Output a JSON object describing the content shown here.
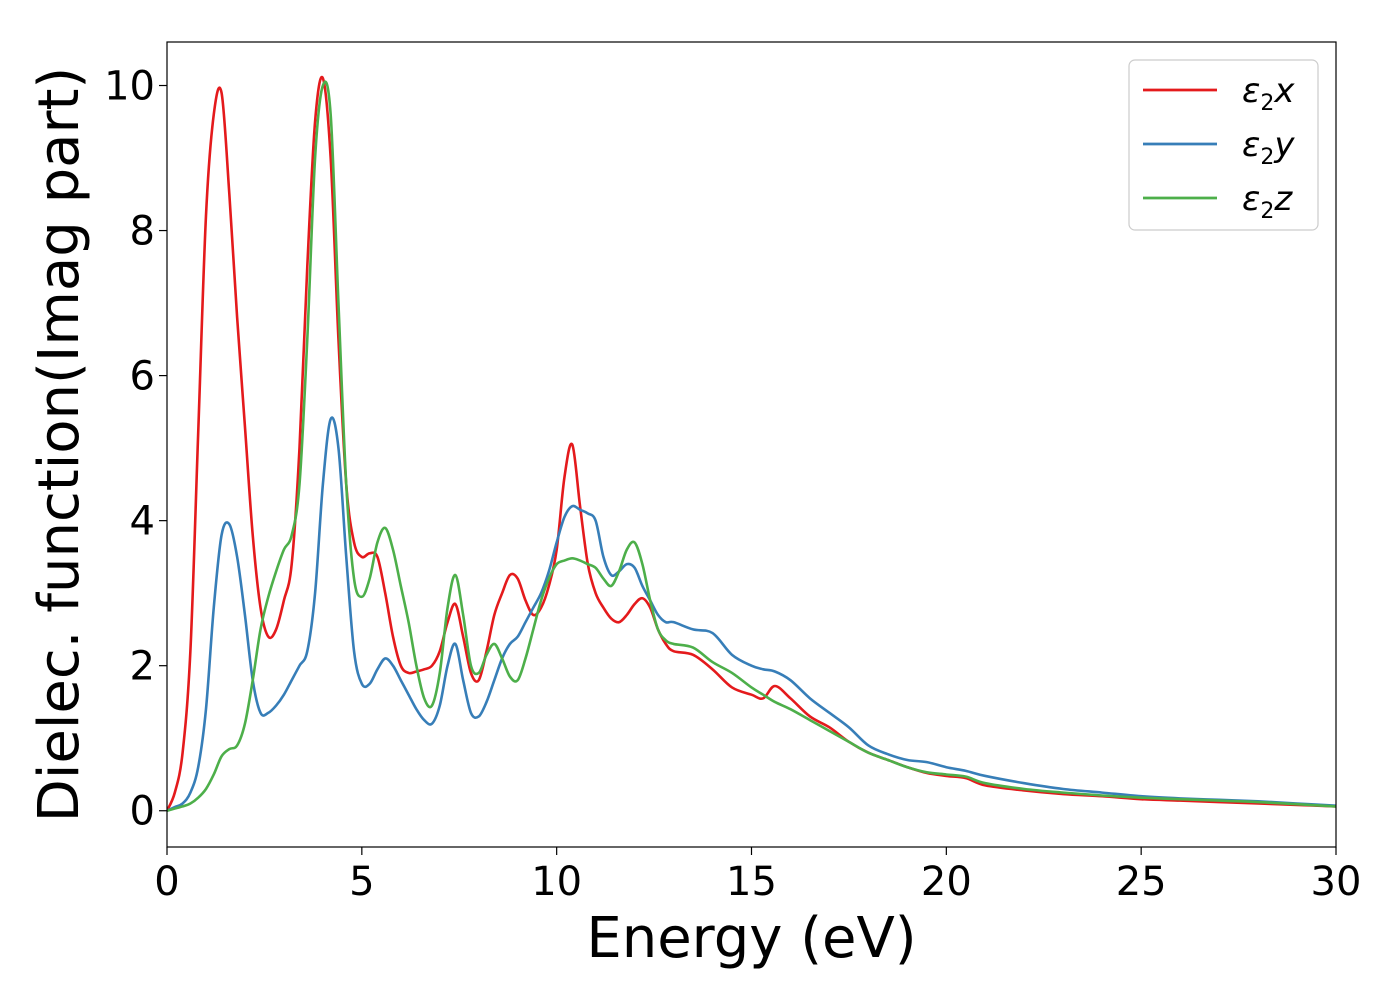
{
  "chart_data": {
    "type": "line",
    "xlabel": "Energy (eV)",
    "ylabel": "Dielec. function(Imag part)",
    "xlim": [
      0,
      30
    ],
    "ylim": [
      -0.5,
      10.6
    ],
    "xticks": [
      0,
      5,
      10,
      15,
      20,
      25,
      30
    ],
    "xtick_labels": [
      "0",
      "5",
      "10",
      "15",
      "20",
      "25",
      "30"
    ],
    "yticks": [
      0,
      2,
      4,
      6,
      8,
      10
    ],
    "ytick_labels": [
      "0",
      "2",
      "4",
      "6",
      "8",
      "10"
    ],
    "grid": false,
    "legend_position": "top-right",
    "series": [
      {
        "name": "ε2x",
        "legend": {
          "base": "ε",
          "sub": "2",
          "var": "x"
        },
        "color": "#e41a1c",
        "x": [
          0,
          0.2,
          0.4,
          0.6,
          0.8,
          1.0,
          1.2,
          1.4,
          1.6,
          1.8,
          2.0,
          2.2,
          2.4,
          2.6,
          2.8,
          3.0,
          3.2,
          3.4,
          3.6,
          3.8,
          4.0,
          4.2,
          4.4,
          4.6,
          4.8,
          5.0,
          5.2,
          5.4,
          5.6,
          5.8,
          6.0,
          6.2,
          6.4,
          6.6,
          6.8,
          7.0,
          7.2,
          7.4,
          7.6,
          7.8,
          8.0,
          8.2,
          8.4,
          8.6,
          8.8,
          9.0,
          9.2,
          9.4,
          9.6,
          9.8,
          10.0,
          10.2,
          10.4,
          10.6,
          10.8,
          11.0,
          11.2,
          11.4,
          11.6,
          11.8,
          12.0,
          12.2,
          12.4,
          12.6,
          12.8,
          13.0,
          13.5,
          14.0,
          14.5,
          15.0,
          15.3,
          15.6,
          16.0,
          16.5,
          17.0,
          17.5,
          18.0,
          18.5,
          19.0,
          19.5,
          20.0,
          20.5,
          21.0,
          22.0,
          23.0,
          24.0,
          25.0,
          26.0,
          27.0,
          28.0,
          29.0,
          30.0
        ],
        "values": [
          0.0,
          0.25,
          0.8,
          2.2,
          5.2,
          8.2,
          9.6,
          9.9,
          8.5,
          6.8,
          5.3,
          3.8,
          2.8,
          2.4,
          2.5,
          2.9,
          3.4,
          5.0,
          7.5,
          9.5,
          10.1,
          9.0,
          6.5,
          4.5,
          3.7,
          3.5,
          3.55,
          3.5,
          3.0,
          2.4,
          2.0,
          1.9,
          1.92,
          1.95,
          2.0,
          2.2,
          2.6,
          2.85,
          2.4,
          1.9,
          1.8,
          2.2,
          2.7,
          3.0,
          3.25,
          3.2,
          2.9,
          2.7,
          2.8,
          3.1,
          3.6,
          4.6,
          5.05,
          4.2,
          3.4,
          3.0,
          2.8,
          2.65,
          2.6,
          2.7,
          2.85,
          2.93,
          2.8,
          2.5,
          2.3,
          2.2,
          2.15,
          1.95,
          1.7,
          1.6,
          1.55,
          1.72,
          1.55,
          1.3,
          1.15,
          0.95,
          0.8,
          0.7,
          0.6,
          0.52,
          0.48,
          0.45,
          0.35,
          0.28,
          0.23,
          0.2,
          0.16,
          0.14,
          0.12,
          0.1,
          0.08,
          0.06
        ]
      },
      {
        "name": "ε2y",
        "legend": {
          "base": "ε",
          "sub": "2",
          "var": "y"
        },
        "color": "#377eb8",
        "x": [
          0,
          0.2,
          0.4,
          0.6,
          0.8,
          1.0,
          1.2,
          1.4,
          1.6,
          1.8,
          2.0,
          2.2,
          2.4,
          2.6,
          2.8,
          3.0,
          3.2,
          3.4,
          3.6,
          3.8,
          4.0,
          4.2,
          4.4,
          4.6,
          4.8,
          5.0,
          5.2,
          5.4,
          5.6,
          5.8,
          6.0,
          6.2,
          6.4,
          6.6,
          6.8,
          7.0,
          7.2,
          7.4,
          7.6,
          7.8,
          8.0,
          8.2,
          8.4,
          8.6,
          8.8,
          9.0,
          9.2,
          9.4,
          9.6,
          9.8,
          10.0,
          10.2,
          10.4,
          10.6,
          10.8,
          11.0,
          11.2,
          11.4,
          11.6,
          11.8,
          12.0,
          12.2,
          12.4,
          12.6,
          12.8,
          13.0,
          13.5,
          14.0,
          14.5,
          15.0,
          15.3,
          15.6,
          16.0,
          16.5,
          17.0,
          17.5,
          18.0,
          18.5,
          19.0,
          19.5,
          20.0,
          20.5,
          21.0,
          22.0,
          23.0,
          24.0,
          25.0,
          26.0,
          27.0,
          28.0,
          29.0,
          30.0
        ],
        "values": [
          0.0,
          0.05,
          0.1,
          0.25,
          0.6,
          1.4,
          2.8,
          3.8,
          3.95,
          3.5,
          2.7,
          1.8,
          1.35,
          1.35,
          1.45,
          1.6,
          1.8,
          2.0,
          2.2,
          3.0,
          4.5,
          5.4,
          5.0,
          3.5,
          2.2,
          1.75,
          1.75,
          1.95,
          2.1,
          2.0,
          1.8,
          1.6,
          1.4,
          1.25,
          1.2,
          1.45,
          2.0,
          2.3,
          1.8,
          1.35,
          1.3,
          1.5,
          1.8,
          2.1,
          2.3,
          2.4,
          2.6,
          2.8,
          3.0,
          3.3,
          3.7,
          4.05,
          4.2,
          4.15,
          4.1,
          4.0,
          3.5,
          3.25,
          3.3,
          3.4,
          3.35,
          3.1,
          2.9,
          2.7,
          2.6,
          2.6,
          2.5,
          2.45,
          2.15,
          2.0,
          1.95,
          1.92,
          1.8,
          1.55,
          1.35,
          1.15,
          0.9,
          0.78,
          0.7,
          0.67,
          0.6,
          0.55,
          0.48,
          0.38,
          0.3,
          0.25,
          0.2,
          0.17,
          0.15,
          0.13,
          0.1,
          0.07
        ]
      },
      {
        "name": "ε2z",
        "legend": {
          "base": "ε",
          "sub": "2",
          "var": "z"
        },
        "color": "#4daf4a",
        "x": [
          0,
          0.2,
          0.4,
          0.6,
          0.8,
          1.0,
          1.2,
          1.4,
          1.6,
          1.8,
          2.0,
          2.2,
          2.4,
          2.6,
          2.8,
          3.0,
          3.2,
          3.4,
          3.6,
          3.8,
          4.0,
          4.2,
          4.4,
          4.6,
          4.8,
          5.0,
          5.2,
          5.4,
          5.6,
          5.8,
          6.0,
          6.2,
          6.4,
          6.6,
          6.8,
          7.0,
          7.2,
          7.4,
          7.6,
          7.8,
          8.0,
          8.2,
          8.4,
          8.6,
          8.8,
          9.0,
          9.2,
          9.4,
          9.6,
          9.8,
          10.0,
          10.2,
          10.4,
          10.6,
          10.8,
          11.0,
          11.2,
          11.4,
          11.6,
          11.8,
          12.0,
          12.2,
          12.4,
          12.6,
          12.8,
          13.0,
          13.5,
          14.0,
          14.5,
          15.0,
          15.3,
          15.6,
          16.0,
          16.5,
          17.0,
          17.5,
          18.0,
          18.5,
          19.0,
          19.5,
          20.0,
          20.5,
          21.0,
          22.0,
          23.0,
          24.0,
          25.0,
          26.0,
          27.0,
          28.0,
          29.0,
          30.0
        ],
        "values": [
          0.0,
          0.03,
          0.06,
          0.1,
          0.18,
          0.3,
          0.5,
          0.75,
          0.85,
          0.9,
          1.2,
          1.8,
          2.5,
          2.95,
          3.3,
          3.6,
          3.8,
          4.5,
          6.5,
          9.0,
          10.0,
          9.6,
          7.0,
          4.5,
          3.2,
          2.95,
          3.2,
          3.7,
          3.9,
          3.6,
          3.1,
          2.6,
          2.0,
          1.55,
          1.45,
          1.9,
          2.8,
          3.25,
          2.7,
          2.0,
          1.9,
          2.15,
          2.3,
          2.1,
          1.85,
          1.8,
          2.1,
          2.5,
          2.9,
          3.2,
          3.4,
          3.45,
          3.48,
          3.45,
          3.4,
          3.35,
          3.2,
          3.1,
          3.3,
          3.6,
          3.7,
          3.4,
          2.9,
          2.5,
          2.35,
          2.3,
          2.25,
          2.05,
          1.9,
          1.7,
          1.6,
          1.5,
          1.4,
          1.25,
          1.1,
          0.95,
          0.8,
          0.7,
          0.6,
          0.53,
          0.5,
          0.47,
          0.38,
          0.3,
          0.25,
          0.21,
          0.18,
          0.16,
          0.14,
          0.12,
          0.09,
          0.06
        ]
      }
    ]
  }
}
